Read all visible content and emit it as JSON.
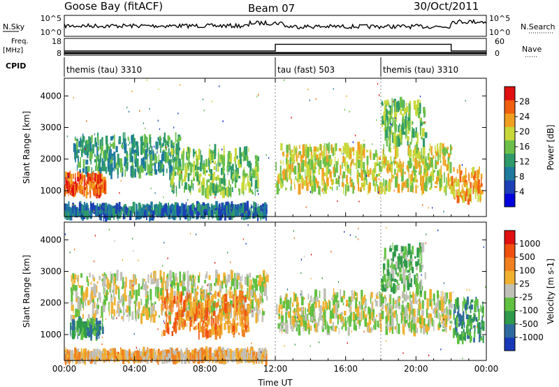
{
  "header": {
    "station": "Goose Bay (fitACF)",
    "beam": "Beam 07",
    "date": "30/Oct/2011"
  },
  "top_panels": {
    "nsky_label": "N.Sky",
    "nsky_ticks": [
      "10^5",
      "10^0"
    ],
    "nsearch_label": "N.Search",
    "nsearch_ticks": [
      "10^5",
      "10^0"
    ],
    "freq_label": "Freq.",
    "freq_unit": "[MHz]",
    "freq_ticks": [
      "18",
      "8"
    ],
    "nave_label": "Nave",
    "nave_ticks": [
      "60",
      "0"
    ],
    "cpid_label": "CPID",
    "cpid_segments": [
      {
        "label": "themis (tau) 3310",
        "start_hour": 0,
        "end_hour": 12
      },
      {
        "label": "tau (fast) 503",
        "start_hour": 12,
        "end_hour": 18
      },
      {
        "label": "themis (tau) 3310",
        "start_hour": 18,
        "end_hour": 24
      }
    ],
    "freq_series": [
      {
        "start_hour": 0,
        "end_hour": 12,
        "value": 10.5
      },
      {
        "start_hour": 12,
        "end_hour": 22,
        "value": 14.5
      },
      {
        "start_hour": 22,
        "end_hour": 24,
        "value": 10.5
      }
    ]
  },
  "chart_data": [
    {
      "type": "heatmap",
      "title": "Power",
      "ylabel": "Slant Range [km]",
      "xlabel": "Time UT",
      "xlim": [
        0,
        24
      ],
      "ylim": [
        180,
        4560
      ],
      "xticks": [
        "00:00",
        "04:00",
        "08:00",
        "12:00",
        "16:00",
        "20:00",
        "00:00"
      ],
      "yticks": [
        1000,
        2000,
        3000,
        4000
      ],
      "colorbar_label": "Power [dB]",
      "colorbar_ticks": [
        "28",
        "24",
        "20",
        "16",
        "12",
        "8",
        "4"
      ],
      "colors": [
        "#0000dd",
        "#1d3fb5",
        "#1f7a9e",
        "#2f9a6a",
        "#6cc04a",
        "#c8d83a",
        "#f0a020",
        "#f06010",
        "#e01010"
      ],
      "bands": [
        {
          "name": "E-region echoes",
          "x0": 0.0,
          "x1": 11.5,
          "y0": 200,
          "y1": 500,
          "level": 2
        },
        {
          "name": "morning arc",
          "x0": 0.5,
          "x1": 6.5,
          "y0": 1500,
          "y1": 2700,
          "level": 3
        },
        {
          "name": "dawn patch",
          "x0": 0.0,
          "x1": 2.3,
          "y0": 900,
          "y1": 1500,
          "level": 7
        },
        {
          "name": "midday band",
          "x0": 6.0,
          "x1": 11.0,
          "y0": 900,
          "y1": 2300,
          "level": 4
        },
        {
          "name": "afternoon band",
          "x0": 12.0,
          "x1": 22.0,
          "y0": 1000,
          "y1": 2400,
          "level": 5
        },
        {
          "name": "evening patch",
          "x0": 22.0,
          "x1": 23.7,
          "y0": 700,
          "y1": 1700,
          "level": 6
        },
        {
          "name": "late streaks",
          "x0": 18.0,
          "x1": 20.5,
          "y0": 2500,
          "y1": 3800,
          "level": 4
        }
      ]
    },
    {
      "type": "heatmap",
      "title": "Velocity",
      "ylabel": "Slant Range [km]",
      "xlabel": "Time UT",
      "xlim": [
        0,
        24
      ],
      "ylim": [
        180,
        4560
      ],
      "xticks": [
        "00:00",
        "04:00",
        "08:00",
        "12:00",
        "16:00",
        "20:00",
        "00:00"
      ],
      "yticks": [
        1000,
        2000,
        3000,
        4000
      ],
      "colorbar_label": "Velocity [m s-1]",
      "colorbar_ticks": [
        "1000",
        "500",
        "100",
        "25",
        "-25",
        "-100",
        "-500",
        "-1000"
      ],
      "colors": [
        "#1838b8",
        "#2f6a9e",
        "#2e9a4a",
        "#60c040",
        "#c0c0b8",
        "#f0b030",
        "#f08020",
        "#f05010",
        "#e01010"
      ],
      "bands": [
        {
          "name": "ground scatter arc",
          "x0": 0.3,
          "x1": 11.5,
          "y0": 1500,
          "y1": 2900,
          "level": 4
        },
        {
          "name": "dawn flow",
          "x0": 0.3,
          "x1": 2.2,
          "y0": 950,
          "y1": 1400,
          "level": 2
        },
        {
          "name": "midday flow",
          "x0": 5.5,
          "x1": 10.5,
          "y0": 1000,
          "y1": 2300,
          "level": 6
        },
        {
          "name": "afternoon ground scatter",
          "x0": 12.0,
          "x1": 22.0,
          "y0": 1100,
          "y1": 2300,
          "level": 4
        },
        {
          "name": "evening flow",
          "x0": 22.0,
          "x1": 23.8,
          "y0": 800,
          "y1": 2100,
          "level": 2
        },
        {
          "name": "late streaks",
          "x0": 18.0,
          "x1": 20.5,
          "y0": 2400,
          "y1": 3800,
          "level": 3
        },
        {
          "name": "E-region",
          "x0": 0.0,
          "x1": 11.5,
          "y0": 200,
          "y1": 450,
          "level": 5
        }
      ]
    }
  ]
}
